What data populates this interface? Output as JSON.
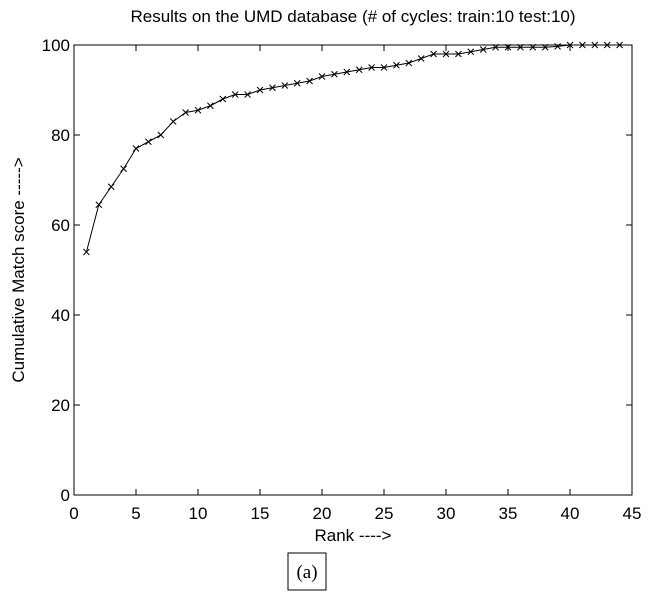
{
  "chart_data": {
    "type": "line",
    "title": "Results on the UMD database (# of cycles: train:10 test:10)",
    "x_label": "Rank ---->",
    "y_label": "Cumulative Match score ----->",
    "caption": "(a)",
    "x": [
      1,
      2,
      3,
      4,
      5,
      6,
      7,
      8,
      9,
      10,
      11,
      12,
      13,
      14,
      15,
      16,
      17,
      18,
      19,
      20,
      21,
      22,
      23,
      24,
      25,
      26,
      27,
      28,
      29,
      30,
      31,
      32,
      33,
      34,
      35,
      36,
      37,
      38,
      39,
      40,
      41,
      42,
      43,
      44
    ],
    "series": [
      {
        "name": "Cumulative Match score",
        "color": "#000000",
        "values": [
          54,
          64.5,
          68.5,
          72.5,
          77,
          78.5,
          80,
          83,
          85,
          85.5,
          86.5,
          88,
          89,
          89,
          90,
          90.5,
          91,
          91.5,
          92,
          93,
          93.5,
          94,
          94.5,
          95,
          95,
          95.5,
          96,
          97,
          98,
          98,
          98,
          98.5,
          99,
          99.5,
          99.5,
          99.5,
          99.5,
          99.5,
          99.7,
          100,
          100,
          100,
          100,
          100
        ]
      }
    ],
    "xlim": [
      0,
      45
    ],
    "xticks": [
      0,
      5,
      10,
      15,
      20,
      25,
      30,
      35,
      40,
      45
    ],
    "ylim": [
      0,
      100
    ],
    "yticks": [
      0,
      20,
      40,
      60,
      80,
      100
    ],
    "marker": "x"
  }
}
